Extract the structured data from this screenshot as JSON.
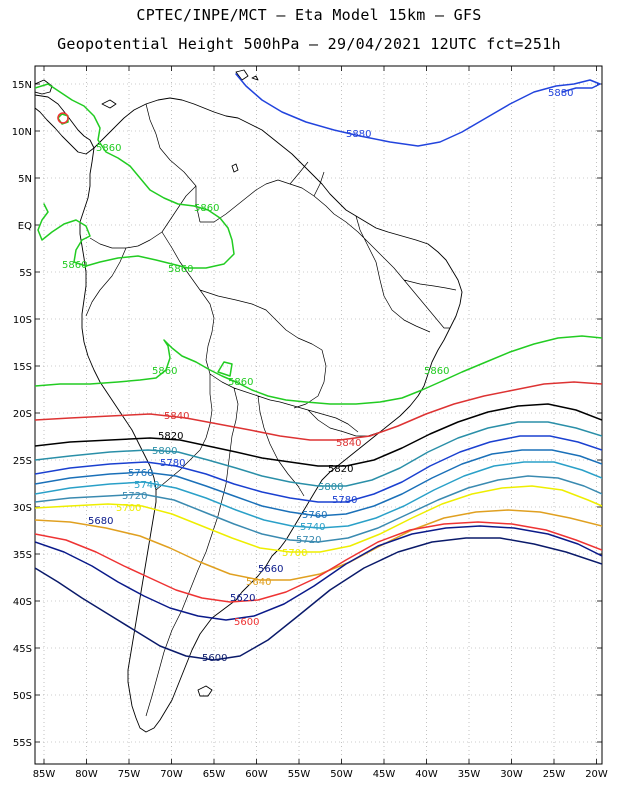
{
  "header": {
    "line1": "CPTEC/INPE/MCT –  Eta Model 15km – GFS",
    "line2": "Geopotential Height 500hPa – 29/04/2021 12UTC fct=251h"
  },
  "axes": {
    "lat_labels": [
      "15N",
      "10N",
      "5N",
      "EQ",
      "5S",
      "10S",
      "15S",
      "20S",
      "25S",
      "30S",
      "35S",
      "40S",
      "45S",
      "50S",
      "55S"
    ],
    "lon_labels": [
      "85W",
      "80W",
      "75W",
      "70W",
      "65W",
      "60W",
      "55W",
      "50W",
      "45W",
      "40W",
      "35W",
      "30W",
      "25W",
      "20W"
    ]
  },
  "colors": {
    "c5880": "#2244dd",
    "c5860": "#22cc22",
    "c5840": "#dd3333",
    "c5820": "#000000",
    "c5800": "#2a8fa8",
    "c5780": "#1a40d0",
    "c5760": "#1a70b8",
    "c5740": "#2aa0c8",
    "c5720": "#3a8ab0",
    "c5700": "#eeee00",
    "c5680": "#e0a020",
    "c5660": "#ee3333",
    "c5640": "#0a1a8a",
    "c5600": "#0a1a6a"
  },
  "labels": {
    "l5880a": "5880",
    "l5880b": "5880",
    "l5860a": "5860",
    "l5860b": "5860",
    "l5860c": "5860",
    "l5860d": "5860",
    "l5860e": "5860",
    "l5860f": "5860",
    "l5860g": "5860",
    "l5840a": "5840",
    "l5840b": "5840",
    "l5820a": "5820",
    "l5820b": "5820",
    "l5800a": "5800",
    "l5800b": "5800",
    "l5780a": "5780",
    "l5780b": "5780",
    "l5760a": "5760",
    "l5760b": "5760",
    "l5740a": "5740",
    "l5740b": "5740",
    "l5720a": "5720",
    "l5720b": "5720",
    "l5700a": "5700",
    "l5700b": "5700",
    "l5680a": "5680",
    "l5660a": "5660",
    "l5640a": "5640",
    "l5620a": "5620",
    "l5600a": "5600"
  }
}
